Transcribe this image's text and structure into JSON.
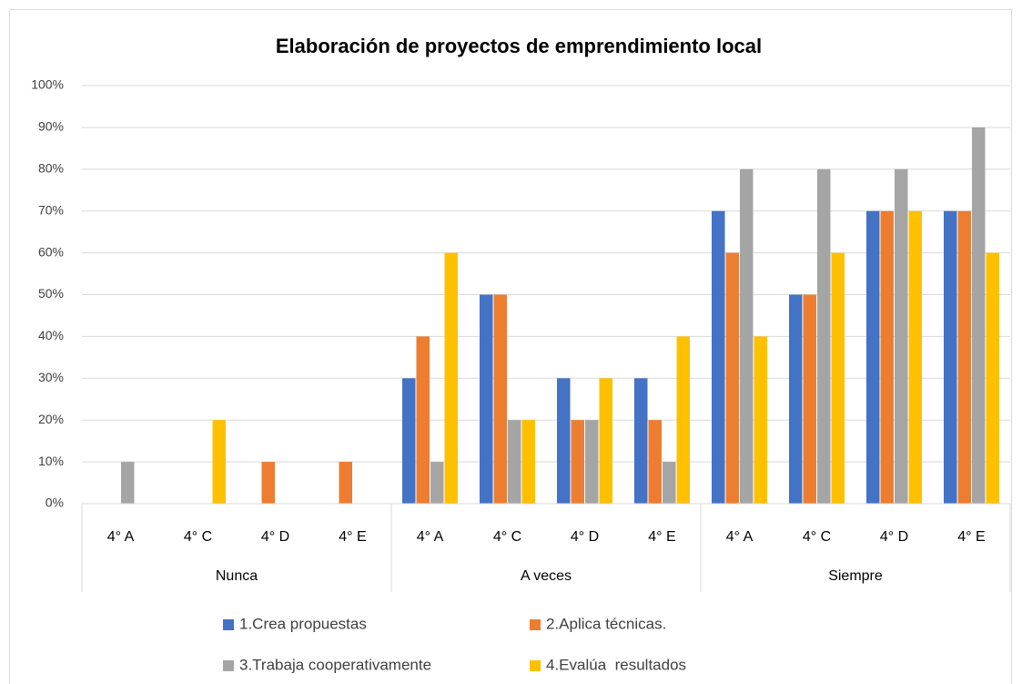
{
  "chart_data": {
    "type": "bar",
    "title": "Elaboración de proyectos de emprendimiento local",
    "groups": [
      "Nunca",
      "A veces",
      "Siempre"
    ],
    "categories": [
      "4° A",
      "4° C",
      "4° D",
      "4° E",
      "4° A",
      "4° C",
      "4° D",
      "4° E",
      "4° A",
      "4° C",
      "4° D",
      "4° E"
    ],
    "series": [
      {
        "name": "1.Crea propuestas",
        "color": "#4472c4",
        "values": [
          0,
          0,
          0,
          0,
          30,
          50,
          30,
          30,
          70,
          50,
          70,
          70
        ]
      },
      {
        "name": "2.Aplica técnicas.",
        "color": "#ed7d31",
        "values": [
          0,
          0,
          10,
          10,
          40,
          50,
          20,
          20,
          60,
          50,
          70,
          70
        ]
      },
      {
        "name": "3.Trabaja cooperativamente",
        "color": "#a5a5a5",
        "values": [
          10,
          0,
          0,
          0,
          10,
          20,
          20,
          10,
          80,
          80,
          80,
          90
        ]
      },
      {
        "name": "4.Evalúa  resultados",
        "color": "#ffc000",
        "values": [
          0,
          20,
          0,
          0,
          60,
          20,
          30,
          40,
          40,
          60,
          70,
          60
        ]
      }
    ],
    "ylim": [
      0,
      100
    ],
    "yticks": [
      {
        "value": 0,
        "label": "0%"
      },
      {
        "value": 10,
        "label": "10%"
      },
      {
        "value": 20,
        "label": "20%"
      },
      {
        "value": 30,
        "label": "30%"
      },
      {
        "value": 40,
        "label": "40%"
      },
      {
        "value": 50,
        "label": "50%"
      },
      {
        "value": 60,
        "label": "60%"
      },
      {
        "value": 70,
        "label": "70%"
      },
      {
        "value": 80,
        "label": "80%"
      },
      {
        "value": 90,
        "label": "90%"
      },
      {
        "value": 100,
        "label": "100%"
      }
    ],
    "grid": true,
    "legend": "bottom"
  }
}
